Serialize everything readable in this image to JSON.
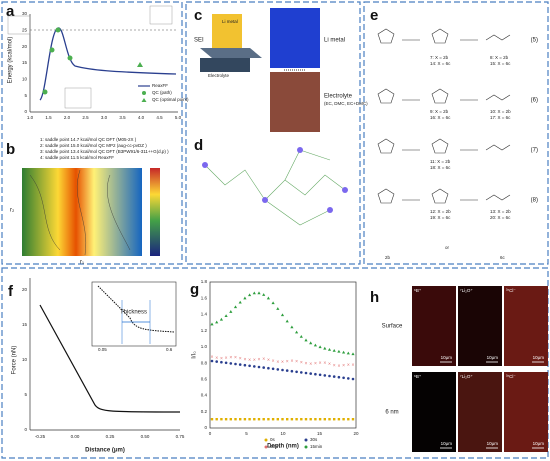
{
  "panels": {
    "a": {
      "label": "a",
      "ylabel": "Energy (kcal/mol)",
      "yticks": [
        "0",
        "5",
        "10",
        "15",
        "20",
        "25",
        "30"
      ],
      "xticks": [
        "1.0",
        "1.5",
        "2.0",
        "2.5",
        "3.0",
        "3.5",
        "4.0",
        "4.5",
        "5.0"
      ],
      "legend": [
        "ReaxFF",
        "QC (path)",
        "QC (optimal point)"
      ]
    },
    "b": {
      "label": "b",
      "notes": [
        "1: saddle point 14.7 kcal/mol QC DFT (M05-2X )",
        "2: saddle point 15.0 kcal/mol QC MP2 (aug-cc-pvDZ )",
        "3: saddle point 13.4 kcal/mol QC DFT (B3PW91/6-311++G(d,p) )",
        "4: saddle point 11.5 kcal/mol ReaxFF"
      ],
      "xlabel": "r₁",
      "ylabel": "r₂"
    },
    "c": {
      "label": "c",
      "texts": [
        "SEI",
        "Li metal",
        "Electrolyte",
        "Li metal",
        "Electrolyte",
        "(EC, DMC, EC+DMC)"
      ]
    },
    "d": {
      "label": "d"
    },
    "e": {
      "label": "e",
      "eqs": [
        "(5)",
        "(6)",
        "(7)",
        "(8)"
      ],
      "compounds": [
        "7: X = 2b",
        "14: X = 6c",
        "8: X = 2b",
        "15: X = 6c",
        "9: X = 2b",
        "16: X = 6c",
        "10: X = 2b",
        "17: X = 6c",
        "11: X = 2b",
        "18: X = 6c",
        "12: X = 2b",
        "19: X = 6c",
        "13: X = 2b",
        "20: X = 6c",
        "2b",
        "6c",
        "or"
      ]
    },
    "f": {
      "label": "f",
      "ylabel": "Force (nN)",
      "xlabel": "Distance (μm)",
      "yticks": [
        "0",
        "5",
        "10",
        "15",
        "20"
      ],
      "xticks": [
        "-0.25",
        "0.00",
        "0.25",
        "0.50",
        "0.75"
      ],
      "inset": "Thickness",
      "inset_xticks": [
        "0.05",
        "0.6"
      ]
    },
    "g": {
      "label": "g",
      "ylabel": "I/I₀",
      "xlabel": "Depth (nm)",
      "yticks": [
        "0",
        "0.2",
        "0.4",
        "0.6",
        "0.8",
        "1.0",
        "1.2",
        "1.4",
        "1.6",
        "1.8"
      ],
      "xticks": [
        "0",
        "5",
        "10",
        "15",
        "20"
      ],
      "legend": [
        "0s",
        "3min",
        "30s",
        "15min"
      ]
    },
    "h": {
      "label": "h",
      "rows": [
        "Surface",
        "6 nm"
      ],
      "cols": [
        "⁶B⁺",
        "⁷Li₂O⁺",
        "³⁷Cl⁻"
      ],
      "scale": "10μm"
    }
  }
}
